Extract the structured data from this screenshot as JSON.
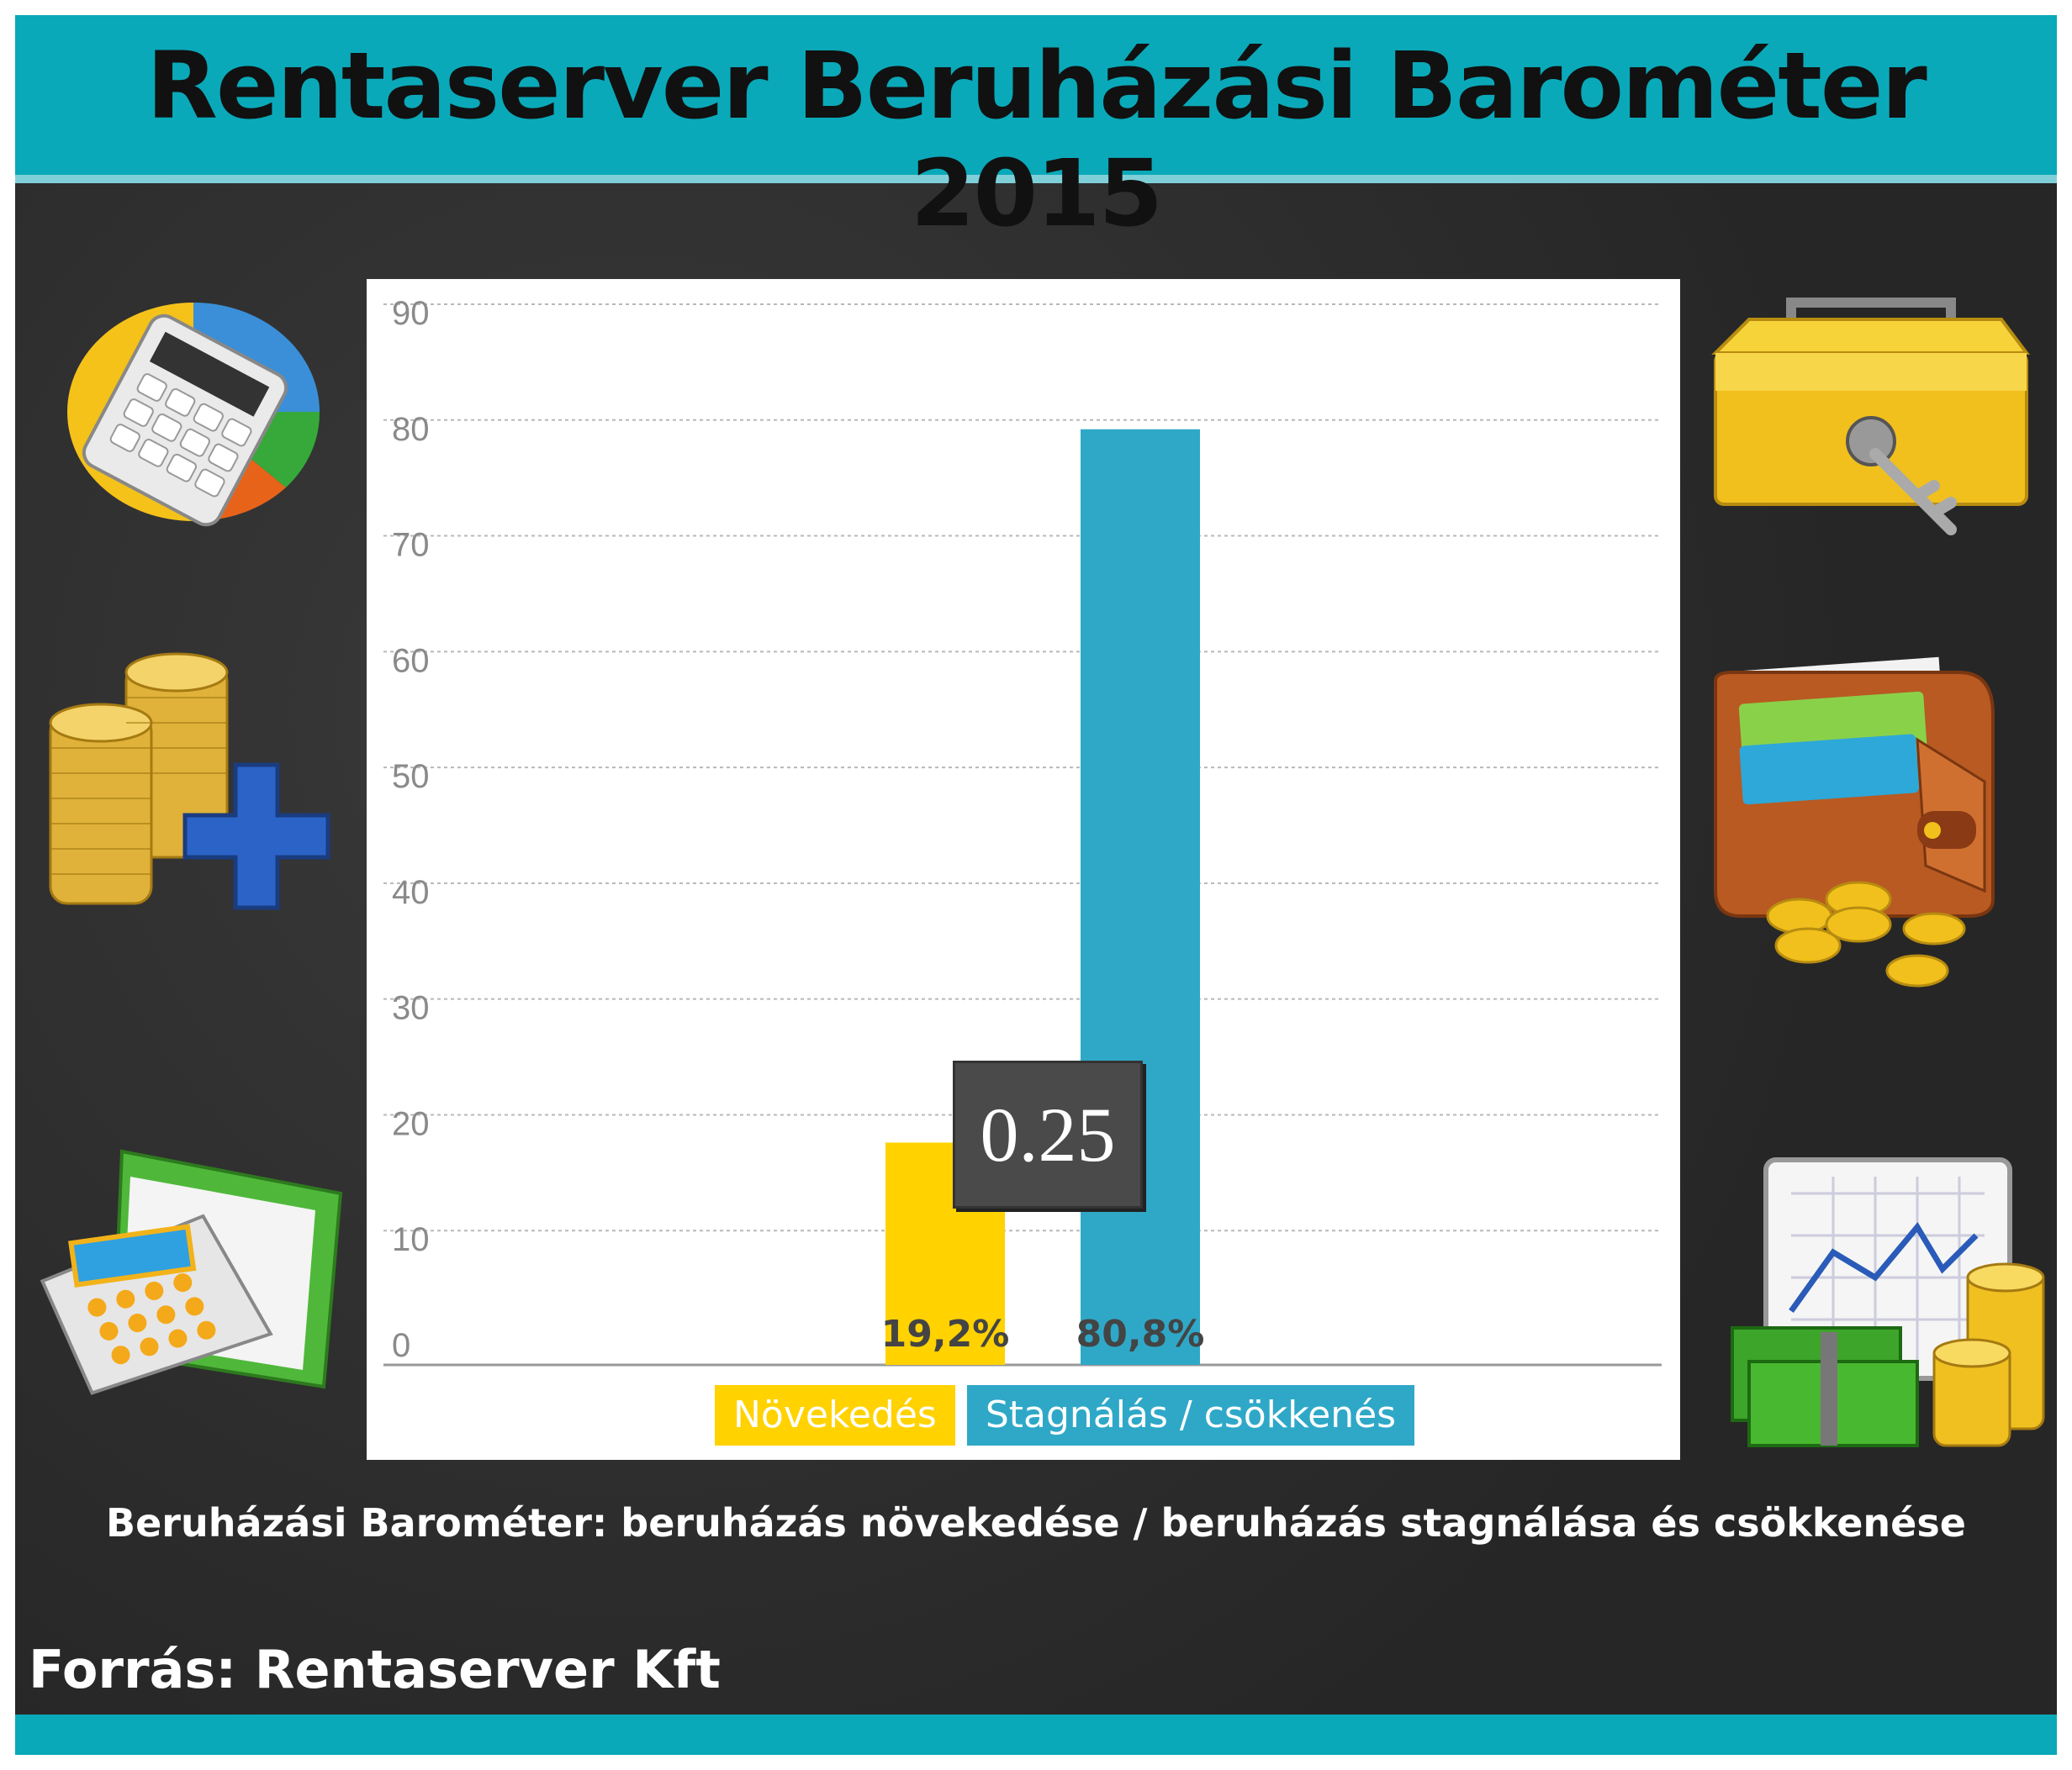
{
  "header": {
    "title": "Rentaserver Beruházási Barométer 2015"
  },
  "chart_data": {
    "type": "bar",
    "categories": [
      "Növekedés",
      "Stagnálás / csökkenés"
    ],
    "values": [
      19.2,
      80.8
    ],
    "data_labels": [
      "19,2%",
      "80,8%"
    ],
    "y_ticks": [
      "0",
      "10",
      "20",
      "30",
      "40",
      "50",
      "60",
      "70",
      "80",
      "90"
    ],
    "ylim": [
      0,
      90
    ],
    "grid": true,
    "legend_position": "bottom",
    "colors": [
      "#ffd200",
      "#2fa8c8"
    ]
  },
  "tooltip": {
    "value": "0.25"
  },
  "caption": "Beruházási Barométer: beruházás növekedése / beruházás stagnálása és csökkenése",
  "source": "Forrás: Rentaserver Kft",
  "icons": {
    "left": [
      "calculator-pie-chart-icon",
      "coins-plus-icon",
      "calculator-folder-icon"
    ],
    "right": [
      "cash-box-icon",
      "wallet-icon",
      "chart-money-icon"
    ]
  },
  "colors": {
    "title_bar": "#0aa9b9",
    "background": "#2d2d2d"
  }
}
